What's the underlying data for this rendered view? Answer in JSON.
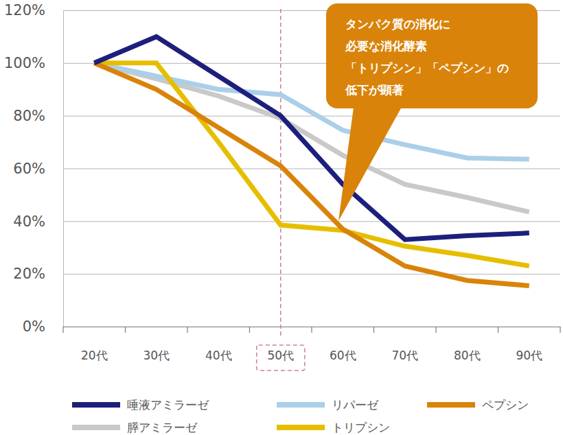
{
  "chart_data": {
    "type": "line",
    "categories": [
      "20代",
      "30代",
      "40代",
      "50代",
      "60代",
      "70代",
      "80代",
      "90代"
    ],
    "series": [
      {
        "name": "唾液アミラーゼ",
        "color": "#1d1f7c",
        "values": [
          100,
          110,
          95,
          80,
          54,
          33,
          34.5,
          35.5
        ]
      },
      {
        "name": "リパーゼ",
        "color": "#abcfe8",
        "values": [
          100,
          95,
          90,
          88,
          74.5,
          69,
          64,
          63.5
        ]
      },
      {
        "name": "ペプシン",
        "color": "#d9830a",
        "values": [
          100,
          90,
          75.5,
          61,
          37,
          23,
          17.5,
          15.5
        ]
      },
      {
        "name": "膵アミラーゼ",
        "color": "#c9c9c9",
        "values": [
          100,
          94,
          87.5,
          79,
          65,
          54,
          49,
          43.5
        ]
      },
      {
        "name": "トリプシン",
        "color": "#e6be00",
        "values": [
          100,
          100,
          70,
          38.5,
          36.5,
          30.5,
          27,
          23
        ]
      }
    ],
    "ylim": [
      0,
      120
    ],
    "yticks": [
      {
        "value": 0,
        "label": "0%"
      },
      {
        "value": 20,
        "label": "20%"
      },
      {
        "value": 40,
        "label": "40%"
      },
      {
        "value": 60,
        "label": "60%"
      },
      {
        "value": 80,
        "label": "80%"
      },
      {
        "value": 100,
        "label": "100%"
      },
      {
        "value": 120,
        "label": "120%"
      }
    ],
    "grid": true,
    "legend": "bottom",
    "annotations": [
      {
        "text": [
          "タンパク質の消化に",
          "必要な消化酵素",
          "「トリプシン」「ペプシン」の",
          "低下が顕著"
        ]
      }
    ]
  }
}
